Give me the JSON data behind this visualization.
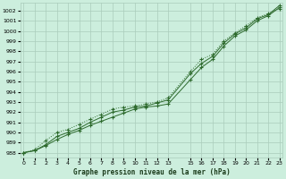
{
  "title": "Graphe pression niveau de la mer (hPa)",
  "bg_color": "#cceedd",
  "grid_color": "#aaccbb",
  "line_color": "#2d6a2d",
  "ylim": [
    987.5,
    1002.8
  ],
  "yticks": [
    988,
    989,
    990,
    991,
    992,
    993,
    994,
    995,
    996,
    997,
    998,
    999,
    1000,
    1001,
    1002
  ],
  "xticks": [
    0,
    1,
    2,
    3,
    4,
    5,
    6,
    7,
    8,
    9,
    10,
    11,
    12,
    13,
    15,
    16,
    17,
    18,
    19,
    20,
    21,
    22,
    23
  ],
  "xlim": [
    -0.3,
    23.3
  ],
  "line1_x": [
    0,
    1,
    2,
    3,
    4,
    5,
    6,
    7,
    8,
    9,
    10,
    11,
    12,
    13,
    15,
    16,
    17,
    18,
    19,
    20,
    21,
    22,
    23
  ],
  "line1_y": [
    988.0,
    988.2,
    988.7,
    989.3,
    989.8,
    990.2,
    990.7,
    991.1,
    991.5,
    991.9,
    992.3,
    992.5,
    992.6,
    992.8,
    995.2,
    996.4,
    997.2,
    998.5,
    999.5,
    1000.1,
    1001.0,
    1001.5,
    1002.3
  ],
  "line2_x": [
    0,
    1,
    2,
    3,
    4,
    5,
    6,
    7,
    8,
    9,
    10,
    11,
    12,
    13,
    15,
    16,
    17,
    18,
    19,
    20,
    21,
    22,
    23
  ],
  "line2_y": [
    988.0,
    988.2,
    988.8,
    989.6,
    990.0,
    990.4,
    991.0,
    991.5,
    992.0,
    992.2,
    992.5,
    992.6,
    992.9,
    993.2,
    995.8,
    996.8,
    997.5,
    998.8,
    999.7,
    1000.3,
    1001.2,
    1001.6,
    1002.5
  ],
  "line3_x": [
    0,
    1,
    2,
    3,
    4,
    5,
    6,
    7,
    8,
    9,
    10,
    11,
    12,
    13,
    15,
    16,
    17,
    18,
    19,
    20,
    21,
    22,
    23
  ],
  "line3_y": [
    988.0,
    988.3,
    989.2,
    990.0,
    990.3,
    990.8,
    991.3,
    991.8,
    992.3,
    992.5,
    992.6,
    992.8,
    993.0,
    993.4,
    996.0,
    997.2,
    997.7,
    999.0,
    999.8,
    1000.5,
    1001.3,
    1001.7,
    1002.2
  ]
}
